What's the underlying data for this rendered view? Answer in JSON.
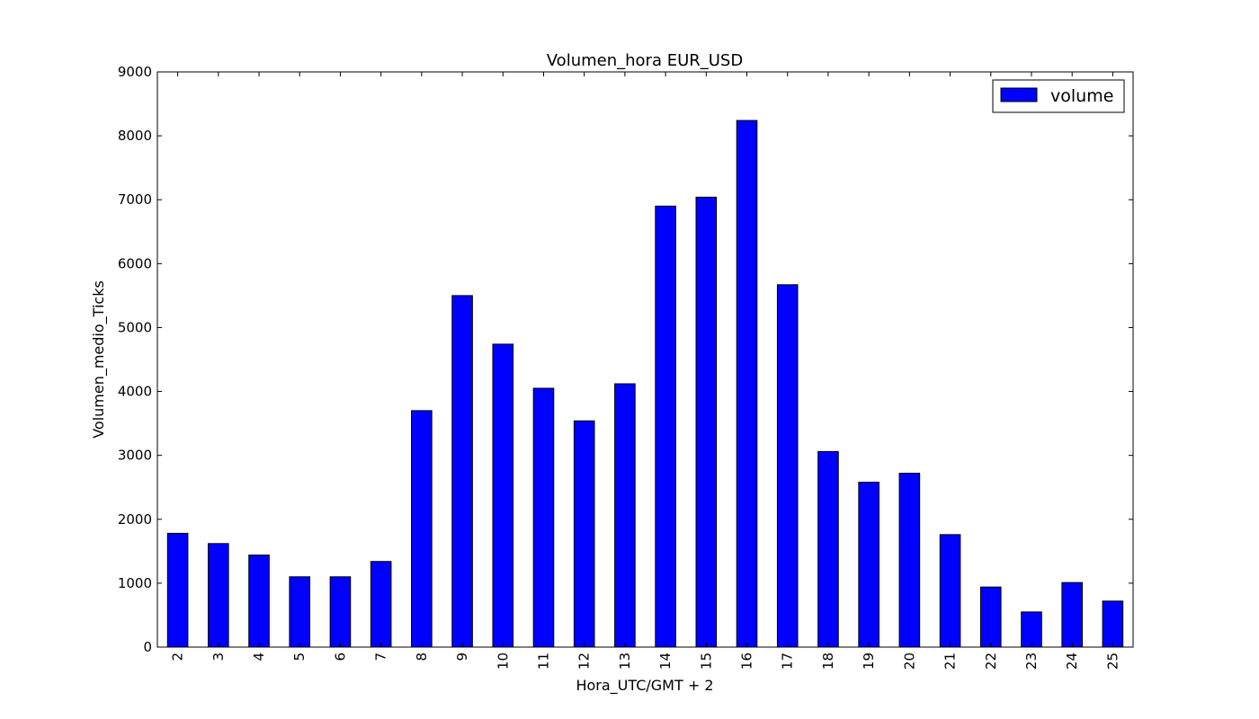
{
  "chart_data": {
    "type": "bar",
    "title": "Volumen_hora EUR_USD",
    "xlabel": "Hora_UTC/GMT + 2",
    "ylabel": "Volumen_medio_Ticks",
    "categories": [
      "2",
      "3",
      "4",
      "5",
      "6",
      "7",
      "8",
      "9",
      "10",
      "11",
      "12",
      "13",
      "14",
      "15",
      "16",
      "17",
      "18",
      "19",
      "20",
      "21",
      "22",
      "23",
      "24",
      "25"
    ],
    "series": [
      {
        "name": "volume",
        "color": "#0000ff",
        "values": [
          1780,
          1620,
          1440,
          1100,
          1100,
          1340,
          3700,
          5500,
          4740,
          4050,
          3540,
          4120,
          6900,
          7040,
          8240,
          5670,
          3060,
          2580,
          2720,
          1760,
          940,
          550,
          1010,
          720
        ]
      }
    ],
    "ylim": [
      0,
      9000
    ],
    "yticks": [
      0,
      1000,
      2000,
      3000,
      4000,
      5000,
      6000,
      7000,
      8000,
      9000
    ],
    "grid": false,
    "legend_position": "top-right"
  }
}
